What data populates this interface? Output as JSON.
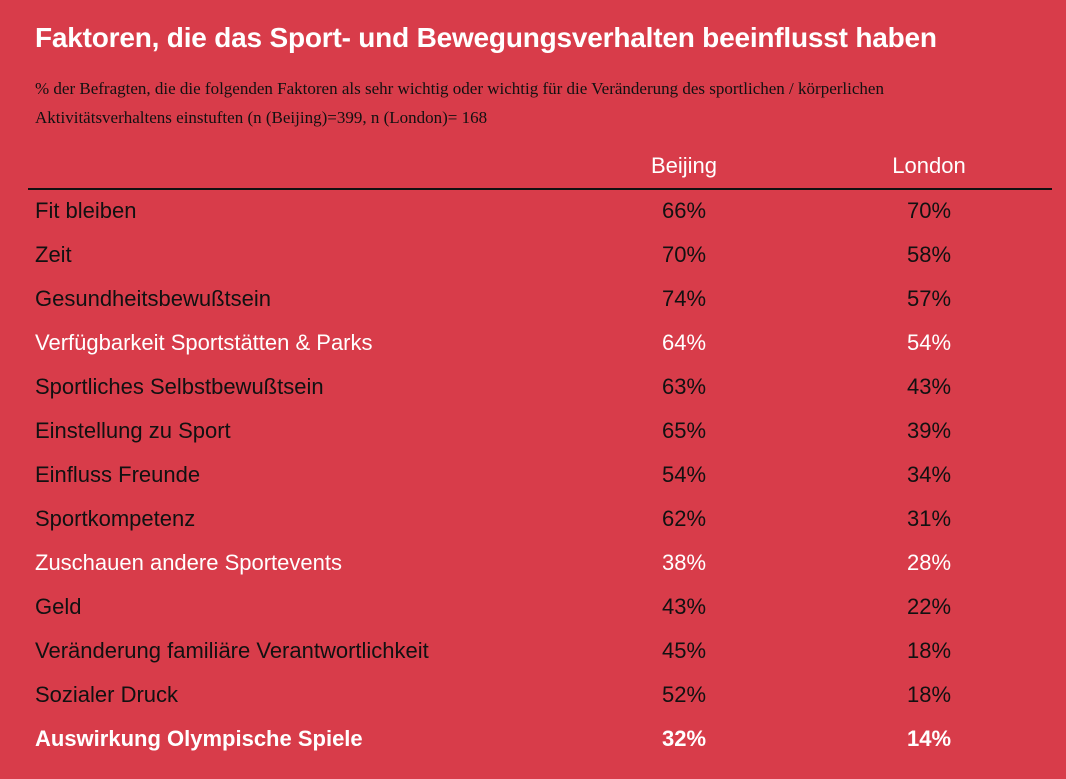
{
  "title": "Faktoren, die das Sport- und Bewegungsverhalten beeinflusst haben",
  "subtitle": "% der Befragten, die die folgenden Faktoren als sehr wichtig oder wichtig für die Veränderung des sportlichen / körperlichen Aktivitätsverhaltens einstuften (n (Beijing)=399, n (London)= 168",
  "colors": {
    "background": "#d83c4a",
    "text_dark": "#111111",
    "text_highlight": "#ffffff"
  },
  "chart_data": {
    "type": "table",
    "columns": [
      "",
      "Beijing",
      "London"
    ],
    "rows": [
      {
        "label": "Fit bleiben",
        "beijing": "66%",
        "london": "70%",
        "style": "normal"
      },
      {
        "label": "Zeit",
        "beijing": "70%",
        "london": "58%",
        "style": "normal"
      },
      {
        "label": "Gesundheitsbewußtsein",
        "beijing": "74%",
        "london": "57%",
        "style": "normal"
      },
      {
        "label": "Verfügbarkeit Sportstätten & Parks",
        "beijing": "64%",
        "london": "54%",
        "style": "white"
      },
      {
        "label": "Sportliches Selbstbewußtsein",
        "beijing": "63%",
        "london": "43%",
        "style": "normal"
      },
      {
        "label": "Einstellung zu Sport",
        "beijing": "65%",
        "london": "39%",
        "style": "normal"
      },
      {
        "label": "Einfluss Freunde",
        "beijing": "54%",
        "london": "34%",
        "style": "normal"
      },
      {
        "label": "Sportkompetenz",
        "beijing": "62%",
        "london": "31%",
        "style": "normal"
      },
      {
        "label": "Zuschauen andere Sportevents",
        "beijing": "38%",
        "london": "28%",
        "style": "white"
      },
      {
        "label": "Geld",
        "beijing": "43%",
        "london": "22%",
        "style": "normal"
      },
      {
        "label": "Veränderung familiäre Verantwortlichkeit",
        "beijing": "45%",
        "london": "18%",
        "style": "normal"
      },
      {
        "label": "Sozialer Druck",
        "beijing": "52%",
        "london": "18%",
        "style": "normal"
      },
      {
        "label": "Auswirkung Olympische Spiele",
        "beijing": "32%",
        "london": "14%",
        "style": "bold"
      }
    ]
  }
}
